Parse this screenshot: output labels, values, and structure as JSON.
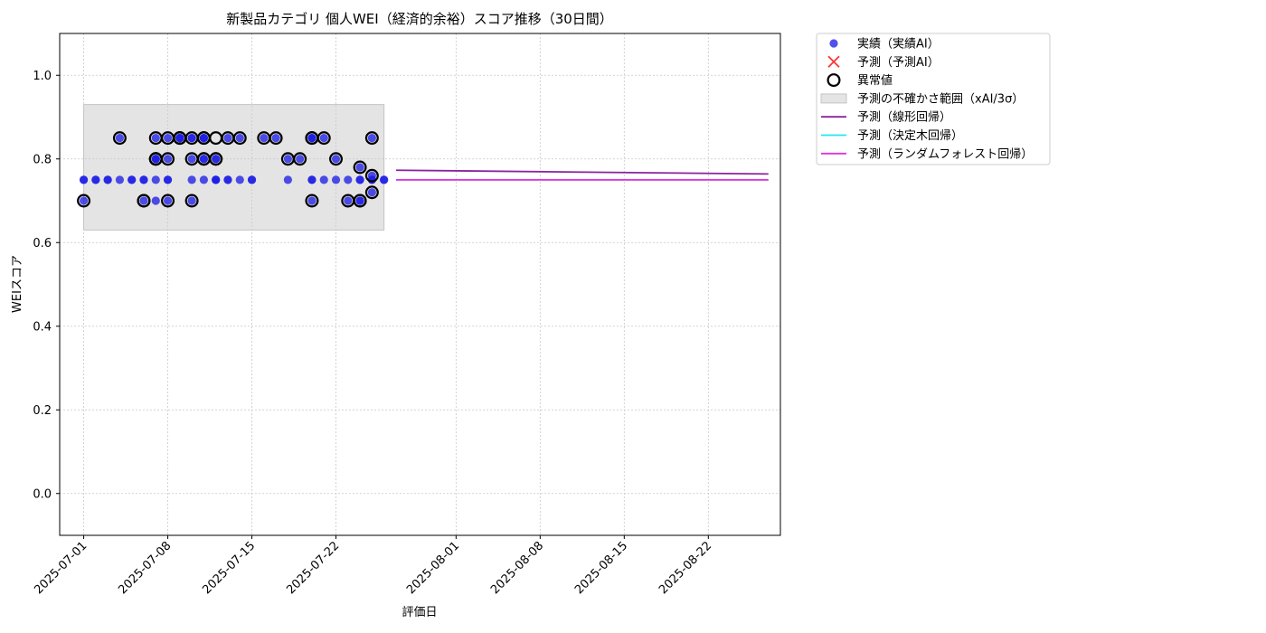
{
  "chart_data": {
    "type": "scatter",
    "title": "新製品カテゴリ 個人WEI（経済的余裕）スコア推移（30日間）",
    "xlabel": "評価日",
    "ylabel": "WEIスコア",
    "xlim": [
      "2025-06-29",
      "2025-08-28"
    ],
    "ylim": [
      -0.1,
      1.1
    ],
    "yticks": [
      0.0,
      0.2,
      0.4,
      0.6,
      0.8,
      1.0
    ],
    "ytick_labels": [
      "0.0",
      "0.2",
      "0.4",
      "0.6",
      "0.8",
      "1.0"
    ],
    "xticks": [
      "2025-07-01",
      "2025-07-08",
      "2025-07-15",
      "2025-07-22",
      "2025-08-01",
      "2025-08-08",
      "2025-08-15",
      "2025-08-22"
    ],
    "xtick_labels": [
      "2025-07-01",
      "2025-07-08",
      "2025-07-15",
      "2025-07-22",
      "2025-08-01",
      "2025-08-08",
      "2025-08-15",
      "2025-08-22"
    ],
    "grid": true,
    "legend_position": "outside-top-right",
    "uncertainty_band": {
      "x_start": "2025-07-01",
      "x_end": "2025-07-26",
      "y_low": 0.63,
      "y_high": 0.93,
      "color": "#d3d3d3"
    },
    "actual": {
      "name": "実績（実績AI）",
      "color": "#1f1fe6",
      "points": [
        [
          "2025-07-01",
          0.7
        ],
        [
          "2025-07-01",
          0.75
        ],
        [
          "2025-07-01",
          0.75
        ],
        [
          "2025-07-02",
          0.75
        ],
        [
          "2025-07-02",
          0.75
        ],
        [
          "2025-07-03",
          0.75
        ],
        [
          "2025-07-03",
          0.75
        ],
        [
          "2025-07-04",
          0.75
        ],
        [
          "2025-07-04",
          0.85
        ],
        [
          "2025-07-05",
          0.75
        ],
        [
          "2025-07-05",
          0.75
        ],
        [
          "2025-07-06",
          0.75
        ],
        [
          "2025-07-06",
          0.7
        ],
        [
          "2025-07-06",
          0.75
        ],
        [
          "2025-07-07",
          0.7
        ],
        [
          "2025-07-07",
          0.8
        ],
        [
          "2025-07-07",
          0.75
        ],
        [
          "2025-07-07",
          0.85
        ],
        [
          "2025-07-07",
          0.8
        ],
        [
          "2025-07-07",
          0.8
        ],
        [
          "2025-07-08",
          0.85
        ],
        [
          "2025-07-08",
          0.8
        ],
        [
          "2025-07-08",
          0.75
        ],
        [
          "2025-07-08",
          0.7
        ],
        [
          "2025-07-08",
          0.75
        ],
        [
          "2025-07-09",
          0.85
        ],
        [
          "2025-07-09",
          0.85
        ],
        [
          "2025-07-09",
          0.85
        ],
        [
          "2025-07-09",
          0.85
        ],
        [
          "2025-07-10",
          0.85
        ],
        [
          "2025-07-10",
          0.7
        ],
        [
          "2025-07-10",
          0.75
        ],
        [
          "2025-07-10",
          0.8
        ],
        [
          "2025-07-10",
          0.85
        ],
        [
          "2025-07-11",
          0.85
        ],
        [
          "2025-07-11",
          0.8
        ],
        [
          "2025-07-11",
          0.85
        ],
        [
          "2025-07-11",
          0.8
        ],
        [
          "2025-07-11",
          0.85
        ],
        [
          "2025-07-11",
          0.75
        ],
        [
          "2025-07-12",
          0.75
        ],
        [
          "2025-07-12",
          0.8
        ],
        [
          "2025-07-12",
          0.8
        ],
        [
          "2025-07-12",
          0.75
        ],
        [
          "2025-07-12",
          0.75
        ],
        [
          "2025-07-13",
          0.75
        ],
        [
          "2025-07-13",
          0.85
        ],
        [
          "2025-07-13",
          0.75
        ],
        [
          "2025-07-14",
          0.75
        ],
        [
          "2025-07-14",
          0.85
        ],
        [
          "2025-07-15",
          0.75
        ],
        [
          "2025-07-15",
          0.75
        ],
        [
          "2025-07-16",
          0.85
        ],
        [
          "2025-07-17",
          0.85
        ],
        [
          "2025-07-18",
          0.8
        ],
        [
          "2025-07-18",
          0.75
        ],
        [
          "2025-07-19",
          0.8
        ],
        [
          "2025-07-20",
          0.85
        ],
        [
          "2025-07-20",
          0.85
        ],
        [
          "2025-07-20",
          0.7
        ],
        [
          "2025-07-20",
          0.75
        ],
        [
          "2025-07-20",
          0.85
        ],
        [
          "2025-07-20",
          0.75
        ],
        [
          "2025-07-21",
          0.85
        ],
        [
          "2025-07-21",
          0.75
        ],
        [
          "2025-07-22",
          0.75
        ],
        [
          "2025-07-22",
          0.8
        ],
        [
          "2025-07-23",
          0.7
        ],
        [
          "2025-07-23",
          0.75
        ],
        [
          "2025-07-24",
          0.7
        ],
        [
          "2025-07-24",
          0.7
        ],
        [
          "2025-07-24",
          0.75
        ],
        [
          "2025-07-24",
          0.78
        ],
        [
          "2025-07-24",
          0.75
        ],
        [
          "2025-07-25",
          0.76
        ],
        [
          "2025-07-25",
          0.75
        ],
        [
          "2025-07-25",
          0.75
        ],
        [
          "2025-07-25",
          0.72
        ],
        [
          "2025-07-25",
          0.85
        ],
        [
          "2025-07-26",
          0.75
        ],
        [
          "2025-07-26",
          0.75
        ]
      ]
    },
    "anomalies": {
      "name": "異常値",
      "color": "#000000",
      "points": [
        [
          "2025-07-01",
          0.7
        ],
        [
          "2025-07-04",
          0.85
        ],
        [
          "2025-07-06",
          0.7
        ],
        [
          "2025-07-06",
          0.7
        ],
        [
          "2025-07-07",
          0.8
        ],
        [
          "2025-07-07",
          0.85
        ],
        [
          "2025-07-07",
          0.8
        ],
        [
          "2025-07-07",
          0.8
        ],
        [
          "2025-07-08",
          0.85
        ],
        [
          "2025-07-08",
          0.8
        ],
        [
          "2025-07-08",
          0.7
        ],
        [
          "2025-07-09",
          0.85
        ],
        [
          "2025-07-09",
          0.85
        ],
        [
          "2025-07-09",
          0.85
        ],
        [
          "2025-07-10",
          0.85
        ],
        [
          "2025-07-10",
          0.7
        ],
        [
          "2025-07-10",
          0.8
        ],
        [
          "2025-07-11",
          0.85
        ],
        [
          "2025-07-11",
          0.8
        ],
        [
          "2025-07-11",
          0.85
        ],
        [
          "2025-07-11",
          0.8
        ],
        [
          "2025-07-12",
          0.85
        ],
        [
          "2025-07-12",
          0.8
        ],
        [
          "2025-07-12",
          0.8
        ],
        [
          "2025-07-13",
          0.85
        ],
        [
          "2025-07-14",
          0.85
        ],
        [
          "2025-07-16",
          0.85
        ],
        [
          "2025-07-17",
          0.85
        ],
        [
          "2025-07-18",
          0.8
        ],
        [
          "2025-07-19",
          0.8
        ],
        [
          "2025-07-20",
          0.85
        ],
        [
          "2025-07-20",
          0.85
        ],
        [
          "2025-07-20",
          0.7
        ],
        [
          "2025-07-21",
          0.85
        ],
        [
          "2025-07-22",
          0.8
        ],
        [
          "2025-07-23",
          0.7
        ],
        [
          "2025-07-24",
          0.7
        ],
        [
          "2025-07-24",
          0.7
        ],
        [
          "2025-07-24",
          0.78
        ],
        [
          "2025-07-25",
          0.76
        ],
        [
          "2025-07-25",
          0.72
        ],
        [
          "2025-07-25",
          0.85
        ]
      ]
    },
    "forecast_ai": {
      "name": "予測（予測AI）",
      "color": "#ff3333",
      "points": []
    },
    "uncertainty_label": "予測の不確かさ範囲（xAI/3σ）",
    "trend_lines": [
      {
        "name": "予測（線形回帰）",
        "color": "#8b22a0",
        "points": [
          [
            "2025-07-27",
            0.773
          ],
          [
            "2025-08-27",
            0.764
          ]
        ]
      },
      {
        "name": "予測（決定木回帰）",
        "color": "#22e8f0",
        "points": [
          [
            "2025-07-27",
            0.75
          ],
          [
            "2025-08-27",
            0.75
          ]
        ]
      },
      {
        "name": "予測（ランダムフォレスト回帰）",
        "color": "#e032e0",
        "points": [
          [
            "2025-07-27",
            0.75
          ],
          [
            "2025-08-27",
            0.75
          ]
        ]
      }
    ]
  }
}
